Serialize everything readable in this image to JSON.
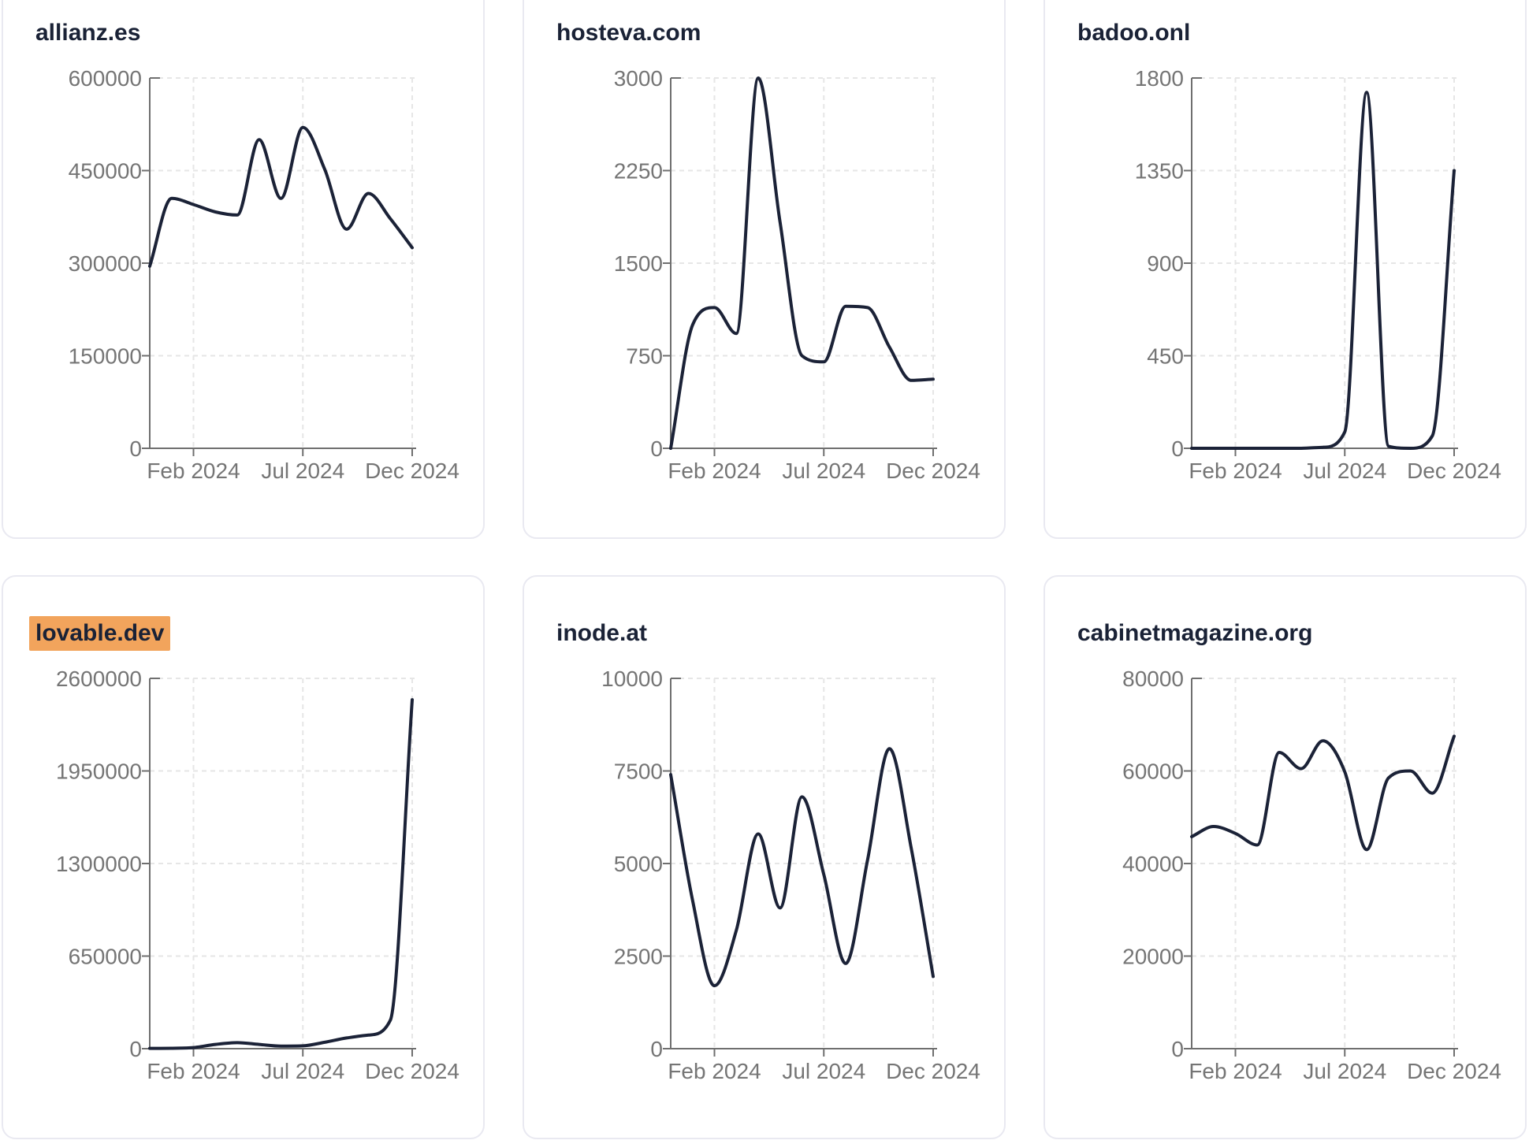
{
  "page": {
    "background": "#ffffff"
  },
  "colors": {
    "line": "#1b2237",
    "grid": "#e6e6e6",
    "axis": "#6f6f6f",
    "tick_label": "#757575",
    "title": "#1a2236",
    "card_border": "#e9e9f1",
    "highlight_bg": "#f2a45c"
  },
  "chart_data": [
    {
      "type": "line",
      "title": "allianz.es",
      "highlighted": false,
      "xlabel": "",
      "ylabel": "",
      "x": [
        "Dec 2023",
        "Jan 2024",
        "Feb 2024",
        "Mar 2024",
        "Apr 2024",
        "May 2024",
        "Jun 2024",
        "Jul 2024",
        "Aug 2024",
        "Sep 2024",
        "Oct 2024",
        "Nov 2024",
        "Dec 2024"
      ],
      "values": [
        295000,
        405000,
        395000,
        383000,
        378000,
        500000,
        405000,
        520000,
        452000,
        355000,
        413000,
        372000,
        325000
      ],
      "y_ticks": [
        0,
        150000,
        300000,
        450000,
        600000
      ],
      "ylim": [
        0,
        600000
      ],
      "x_tick_labels": [
        "Feb 2024",
        "Jul 2024",
        "Dec 2024"
      ],
      "x_tick_indices": [
        2,
        7,
        12
      ],
      "grid": true,
      "legend": false
    },
    {
      "type": "line",
      "title": "hosteva.com",
      "highlighted": false,
      "xlabel": "",
      "ylabel": "",
      "x": [
        "Dec 2023",
        "Jan 2024",
        "Feb 2024",
        "Mar 2024",
        "Apr 2024",
        "May 2024",
        "Jun 2024",
        "Jul 2024",
        "Aug 2024",
        "Sep 2024",
        "Oct 2024",
        "Nov 2024",
        "Dec 2024"
      ],
      "values": [
        0,
        1000,
        1140,
        930,
        3000,
        1830,
        750,
        700,
        1150,
        1140,
        820,
        550,
        560
      ],
      "y_ticks": [
        0,
        750,
        1500,
        2250,
        3000
      ],
      "ylim": [
        0,
        3000
      ],
      "x_tick_labels": [
        "Feb 2024",
        "Jul 2024",
        "Dec 2024"
      ],
      "x_tick_indices": [
        2,
        7,
        12
      ],
      "grid": true,
      "legend": false
    },
    {
      "type": "line",
      "title": "badoo.onl",
      "highlighted": false,
      "xlabel": "",
      "ylabel": "",
      "x": [
        "Dec 2023",
        "Jan 2024",
        "Feb 2024",
        "Mar 2024",
        "Apr 2024",
        "May 2024",
        "Jun 2024",
        "Jul 2024",
        "Aug 2024",
        "Sep 2024",
        "Oct 2024",
        "Nov 2024",
        "Dec 2024"
      ],
      "values": [
        0,
        0,
        0,
        0,
        0,
        0,
        5,
        80,
        1730,
        10,
        0,
        60,
        1350
      ],
      "y_ticks": [
        0,
        450,
        900,
        1350,
        1800
      ],
      "ylim": [
        0,
        1800
      ],
      "x_tick_labels": [
        "Feb 2024",
        "Jul 2024",
        "Dec 2024"
      ],
      "x_tick_indices": [
        2,
        7,
        12
      ],
      "grid": true,
      "legend": false
    },
    {
      "type": "line",
      "title": "lovable.dev",
      "highlighted": true,
      "xlabel": "",
      "ylabel": "",
      "x": [
        "Dec 2023",
        "Jan 2024",
        "Feb 2024",
        "Mar 2024",
        "Apr 2024",
        "May 2024",
        "Jun 2024",
        "Jul 2024",
        "Aug 2024",
        "Sep 2024",
        "Oct 2024",
        "Nov 2024",
        "Dec 2024"
      ],
      "values": [
        2000,
        3000,
        8000,
        30000,
        42000,
        30000,
        18000,
        20000,
        45000,
        75000,
        95000,
        200000,
        2450000
      ],
      "y_ticks": [
        0,
        650000,
        1300000,
        1950000,
        2600000
      ],
      "ylim": [
        0,
        2600000
      ],
      "x_tick_labels": [
        "Feb 2024",
        "Jul 2024",
        "Dec 2024"
      ],
      "x_tick_indices": [
        2,
        7,
        12
      ],
      "grid": true,
      "legend": false
    },
    {
      "type": "line",
      "title": "inode.at",
      "highlighted": false,
      "xlabel": "",
      "ylabel": "",
      "x": [
        "Dec 2023",
        "Jan 2024",
        "Feb 2024",
        "Mar 2024",
        "Apr 2024",
        "May 2024",
        "Jun 2024",
        "Jul 2024",
        "Aug 2024",
        "Sep 2024",
        "Oct 2024",
        "Nov 2024",
        "Dec 2024"
      ],
      "values": [
        7400,
        4000,
        1700,
        3200,
        5800,
        3800,
        6800,
        4700,
        2300,
        5100,
        8100,
        5400,
        1950
      ],
      "y_ticks": [
        0,
        2500,
        5000,
        7500,
        10000
      ],
      "ylim": [
        0,
        10000
      ],
      "x_tick_labels": [
        "Feb 2024",
        "Jul 2024",
        "Dec 2024"
      ],
      "x_tick_indices": [
        2,
        7,
        12
      ],
      "grid": true,
      "legend": false
    },
    {
      "type": "line",
      "title": "cabinetmagazine.org",
      "highlighted": false,
      "xlabel": "",
      "ylabel": "",
      "x": [
        "Dec 2023",
        "Jan 2024",
        "Feb 2024",
        "Mar 2024",
        "Apr 2024",
        "May 2024",
        "Jun 2024",
        "Jul 2024",
        "Aug 2024",
        "Sep 2024",
        "Oct 2024",
        "Nov 2024",
        "Dec 2024"
      ],
      "values": [
        45800,
        48000,
        46500,
        44000,
        64000,
        60500,
        66500,
        59800,
        43000,
        58500,
        60000,
        55200,
        67500
      ],
      "y_ticks": [
        0,
        20000,
        40000,
        60000,
        80000
      ],
      "ylim": [
        0,
        80000
      ],
      "x_tick_labels": [
        "Feb 2024",
        "Jul 2024",
        "Dec 2024"
      ],
      "x_tick_indices": [
        2,
        7,
        12
      ],
      "grid": true,
      "legend": false
    }
  ]
}
